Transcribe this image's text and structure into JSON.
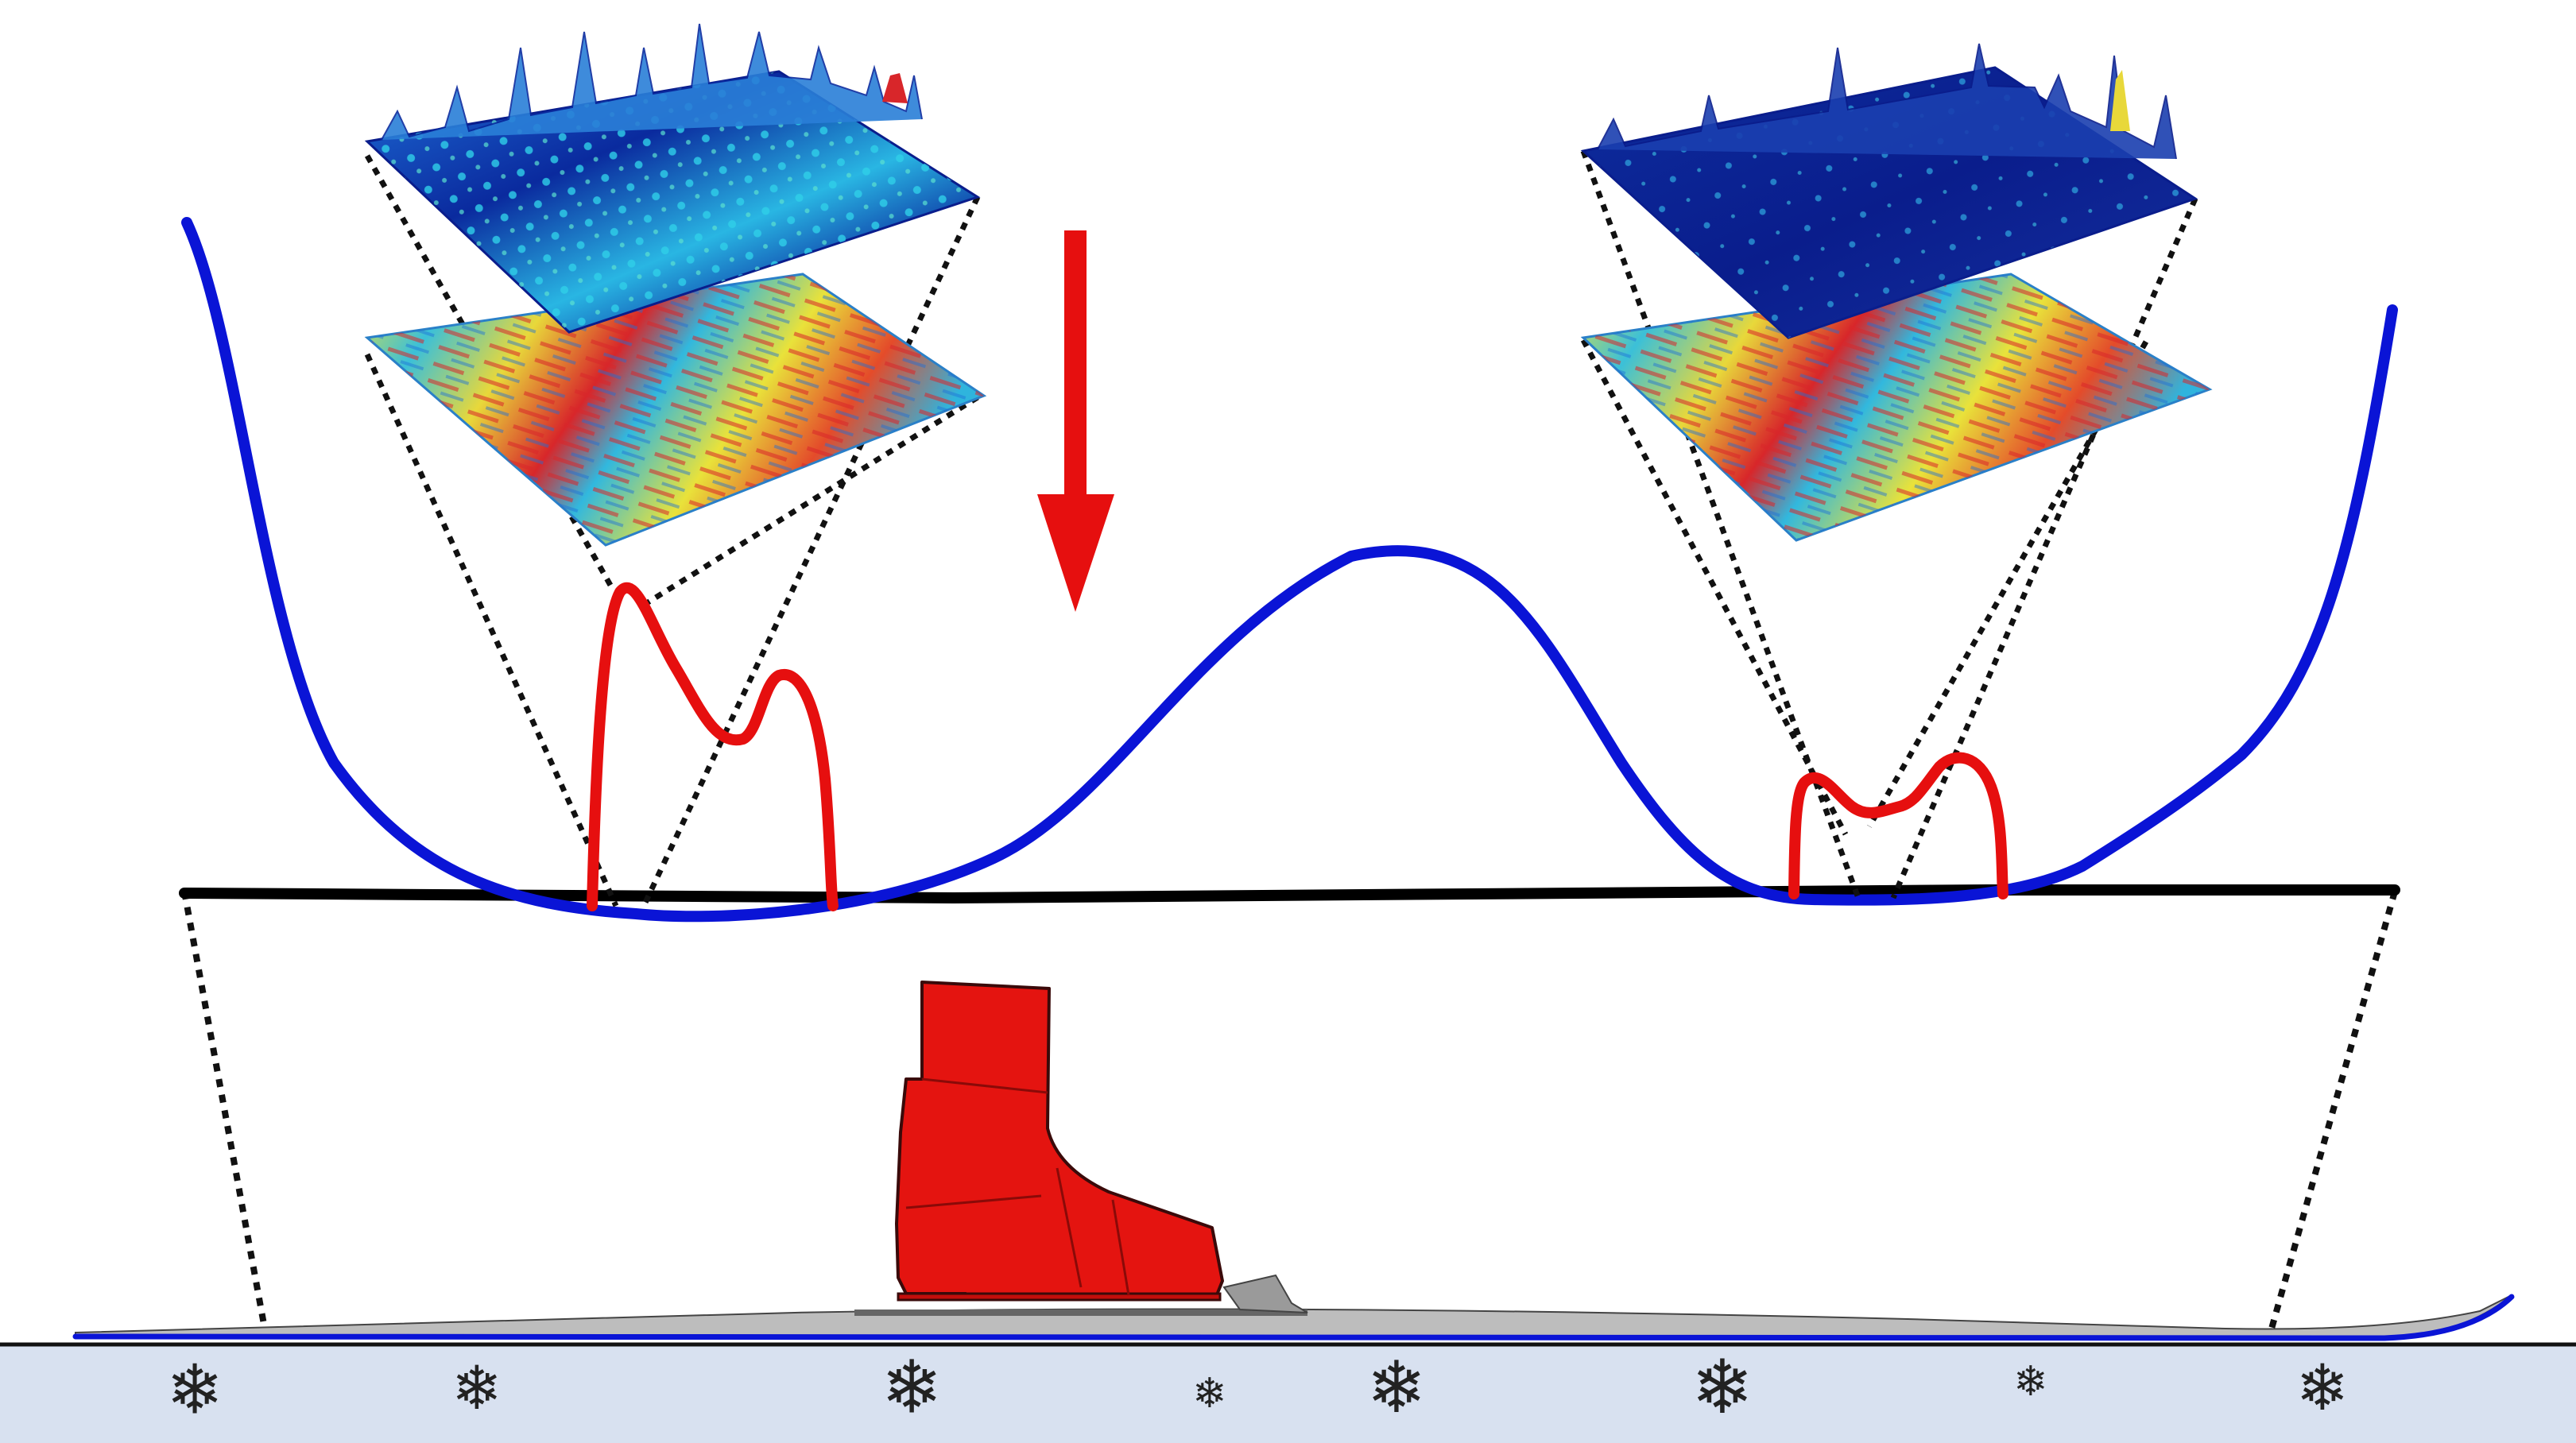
{
  "colors": {
    "background": "#ffffff",
    "ski_curve": "#0a14d6",
    "pressure_curve": "#e60f0f",
    "base_line": "#000000",
    "arrow": "#e60f0f",
    "boot": "#e41410",
    "boot_outline": "#3a0a0a",
    "ski_body": "#bdbdbd",
    "ski_edge": "#0a14d6",
    "snow_fill": "#d8e1f0",
    "snow_line": "#111111",
    "snowflake": "#222222",
    "surface_low": "#0a1d8c",
    "surface_mid": "#22b7e0",
    "surface_high": "#d8262a",
    "surface_warm": "#e9e23a"
  },
  "icons": {
    "down_arrow": "red-down-arrow",
    "boot": "ski-boot",
    "snowflake": "❄"
  },
  "elements": {
    "ski_camber_curve": "ski-camber-curve",
    "left_pressure_peak": "left-pressure-peak",
    "right_pressure_peak": "right-pressure-peak",
    "left_surface_pair": "left-surface-pair",
    "right_surface_pair": "right-surface-pair",
    "snow_ground": "snow-ground"
  }
}
